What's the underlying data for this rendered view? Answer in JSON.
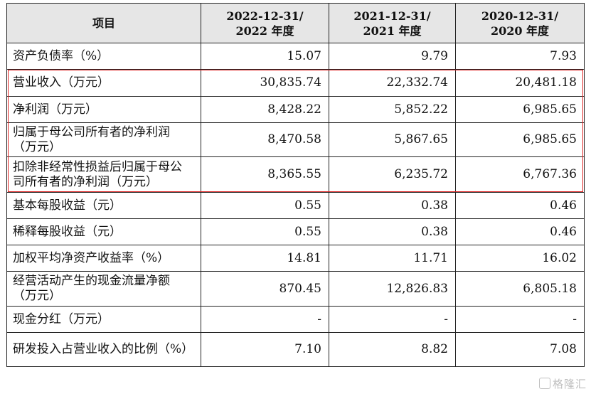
{
  "table": {
    "headers": [
      "项目",
      "2022-12-31/\n2022 年度",
      "2021-12-31/\n2021 年度",
      "2020-12-31/\n2020 年度"
    ],
    "header_lines": [
      [
        "项目"
      ],
      [
        "2022-12-31/",
        "2022 年度"
      ],
      [
        "2021-12-31/",
        "2021 年度"
      ],
      [
        "2020-12-31/",
        "2020 年度"
      ]
    ],
    "rows": [
      {
        "label": "资产负债率（%）",
        "values": [
          "15.07",
          "9.79",
          "7.93"
        ]
      },
      {
        "label": "营业收入（万元）",
        "values": [
          "30,835.74",
          "22,332.74",
          "20,481.18"
        ]
      },
      {
        "label": "净利润（万元）",
        "values": [
          "8,428.22",
          "5,852.22",
          "6,985.65"
        ]
      },
      {
        "label": "归属于母公司所有者的净利润（万元）",
        "values": [
          "8,470.58",
          "5,867.65",
          "6,985.65"
        ]
      },
      {
        "label": "扣除非经常性损益后归属于母公司所有者的净利润（万元）",
        "values": [
          "8,365.55",
          "6,235.72",
          "6,767.36"
        ]
      },
      {
        "label": "基本每股收益（元）",
        "values": [
          "0.55",
          "0.38",
          "0.46"
        ]
      },
      {
        "label": "稀释每股收益（元）",
        "values": [
          "0.55",
          "0.38",
          "0.46"
        ]
      },
      {
        "label": "加权平均净资产收益率（%）",
        "values": [
          "14.81",
          "11.71",
          "16.02"
        ]
      },
      {
        "label": "经营活动产生的现金流量净额（万元）",
        "values": [
          "870.45",
          "12,826.83",
          "6,805.18"
        ]
      },
      {
        "label": "现金分红（万元）",
        "values": [
          "-",
          "-",
          "-"
        ]
      },
      {
        "label": "研发投入占营业收入的比例（%）",
        "values": [
          "7.10",
          "8.82",
          "7.08"
        ]
      }
    ]
  },
  "highlight_color": "#e02424",
  "watermark": "格隆汇"
}
